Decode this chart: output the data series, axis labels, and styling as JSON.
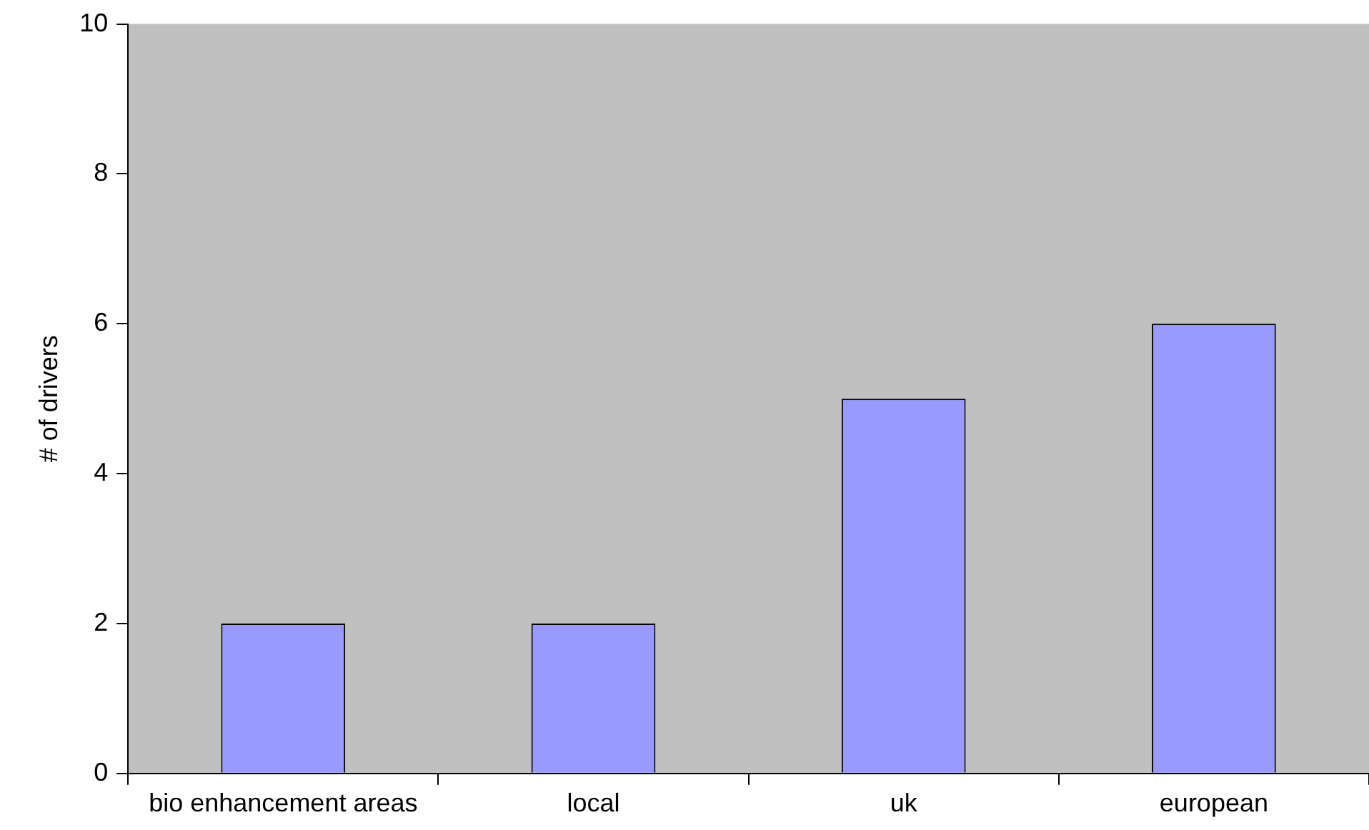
{
  "chart_data": {
    "type": "bar",
    "ylabel": "# of drivers",
    "categories": [
      "bio enhancement areas",
      "local",
      "uk",
      "european"
    ],
    "values": [
      2,
      2,
      5,
      6
    ],
    "color": "#9999ff",
    "ylim": [
      0,
      10
    ],
    "yticks": [
      0,
      2,
      4,
      6,
      8,
      10
    ],
    "grid": false,
    "legend": false
  }
}
